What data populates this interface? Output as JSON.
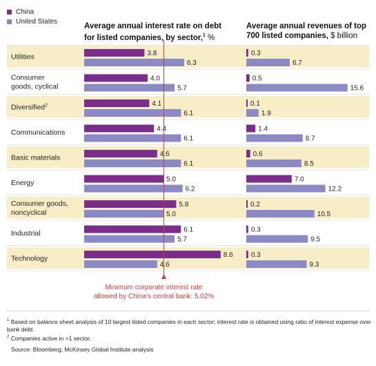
{
  "legend": {
    "china_label": "China",
    "us_label": "United States",
    "china_color": "#7a2e8a",
    "us_color": "#8c8ac4"
  },
  "header_left": {
    "line1": "Average annual interest rate on debt",
    "line2_bold": "for listed companies, by sector,",
    "footnote_mark": "1",
    "unit": "%"
  },
  "header_right": {
    "line1": "Average annual revenues of top",
    "line2_bold": "700 listed companies,",
    "unit": "$ billion"
  },
  "minimum_note": {
    "line1": "Minimum corporate interest rate",
    "line2": "allowed by China’s central bank: 5.02%",
    "color": "#d03a3a"
  },
  "footnotes": {
    "note1_mark": "1",
    "note1": "Based on balance sheet analysis of 10 largest listed companies in each sector; interest rate is obtained using ratio of interest expense over bank debt.",
    "note2_mark": "2",
    "note2": "Companies active in >1 sector.",
    "source": "Source: Bloomberg; McKinsey Global Institute analysis"
  },
  "colors": {
    "band": "#f7edc6",
    "grid": "#dddddd"
  },
  "chart_data": [
    {
      "type": "bar",
      "title": "Average annual interest rate on debt for listed companies, by sector",
      "unit": "%",
      "categories": [
        "Utilities",
        "Consumer goods, cyclical",
        "Diversified",
        "Communications",
        "Basic materials",
        "Energy",
        "Consumer goods, noncyclical",
        "Industrial",
        "Technology"
      ],
      "category_lines": [
        [
          "Utilities"
        ],
        [
          "Consumer",
          "goods, cyclical"
        ],
        [
          "Diversified"
        ],
        [
          "Communications"
        ],
        [
          "Basic materials"
        ],
        [
          "Energy"
        ],
        [
          "Consumer goods,",
          "noncyclical"
        ],
        [
          "Industrial"
        ],
        [
          "Technology"
        ]
      ],
      "category_sup": [
        "",
        "",
        "2",
        "",
        "",
        "",
        "",
        "",
        ""
      ],
      "series": [
        {
          "name": "China",
          "values": [
            3.8,
            4.0,
            4.1,
            4.4,
            4.6,
            5.0,
            5.8,
            6.1,
            8.6
          ]
        },
        {
          "name": "United States",
          "values": [
            6.3,
            5.7,
            6.1,
            6.1,
            6.1,
            6.2,
            5.0,
            5.7,
            4.6
          ]
        }
      ],
      "value_labels": {
        "china": [
          "3.8",
          "4.0",
          "4.1",
          "4.4",
          "4.6",
          "5.0",
          "5.8",
          "6.1",
          "8.6"
        ],
        "us": [
          "6.3",
          "5.7",
          "6.1",
          "6.1",
          "6.1",
          "6.2",
          "5.0",
          "5.7",
          "4.6"
        ]
      },
      "reference_line": 5.02,
      "orientation": "horizontal"
    },
    {
      "type": "bar",
      "title": "Average annual revenues of top 700 listed companies",
      "unit": "$ billion",
      "categories": [
        "Utilities",
        "Consumer goods, cyclical",
        "Diversified",
        "Communications",
        "Basic materials",
        "Energy",
        "Consumer goods, noncyclical",
        "Industrial",
        "Technology"
      ],
      "series": [
        {
          "name": "China",
          "values": [
            0.3,
            0.5,
            0.1,
            1.4,
            0.6,
            7.0,
            0.2,
            0.3,
            0.3
          ]
        },
        {
          "name": "United States",
          "values": [
            6.7,
            15.6,
            1.9,
            8.7,
            8.5,
            12.2,
            10.5,
            9.5,
            9.3
          ]
        }
      ],
      "value_labels": {
        "china": [
          "0.3",
          "0.5",
          "0.1",
          "1.4",
          "0.6",
          "7.0",
          "0.2",
          "0.3",
          "0.3"
        ],
        "us": [
          "6.7",
          "15.6",
          "1.9",
          "8.7",
          "8.5",
          "12.2",
          "10.5",
          "9.5",
          "9.3"
        ]
      },
      "orientation": "horizontal"
    }
  ]
}
